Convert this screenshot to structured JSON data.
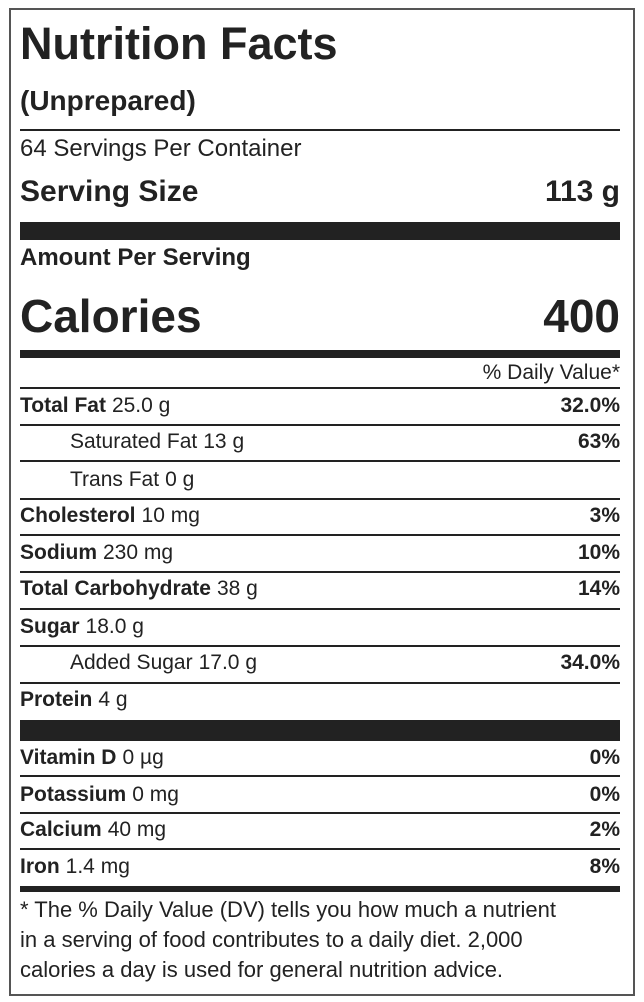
{
  "header": {
    "title": "Nutrition Facts",
    "subtitle": "(Unprepared)",
    "servings": "64 Servings Per Container",
    "serving_size_label": "Serving Size",
    "serving_size": "113 g",
    "amount_per_serving": "Amount Per Serving",
    "calories_label": "Calories",
    "calories": "400",
    "daily_value_header": "% Daily Value*"
  },
  "nutrients": [
    {
      "name": "Total Fat",
      "amount": "25.0 g",
      "dv": "32.0%"
    },
    {
      "name": "Saturated Fat",
      "amount": "13 g",
      "dv": "63%"
    },
    {
      "name": "Trans Fat",
      "amount": "0 g"
    },
    {
      "name": "Cholesterol",
      "amount": "10 mg",
      "dv": "3%"
    },
    {
      "name": "Sodium",
      "amount": "230 mg",
      "dv": "10%"
    },
    {
      "name": "Total Carbohydrate",
      "amount": "38 g",
      "dv": "14%"
    },
    {
      "name": "Sugar",
      "amount": "18.0 g"
    },
    {
      "name": "Added Sugar",
      "amount": "17.0 g",
      "dv": "34.0%"
    },
    {
      "name": "Protein",
      "amount": "4 g"
    }
  ],
  "vitamins": [
    {
      "name": "Vitamin D",
      "amount": "0 µg",
      "dv": "0%"
    },
    {
      "name": "Potassium",
      "amount": "0 mg",
      "dv": "0%"
    },
    {
      "name": "Calcium",
      "amount": "40 mg",
      "dv": "2%"
    },
    {
      "name": "Iron",
      "amount": "1.4 mg",
      "dv": "8%"
    }
  ],
  "footnote": [
    "* The % Daily Value (DV) tells you how much a nutrient",
    "in a serving of food contributes to a daily diet. 2,000",
    "calories a day is used for general nutrition advice."
  ]
}
